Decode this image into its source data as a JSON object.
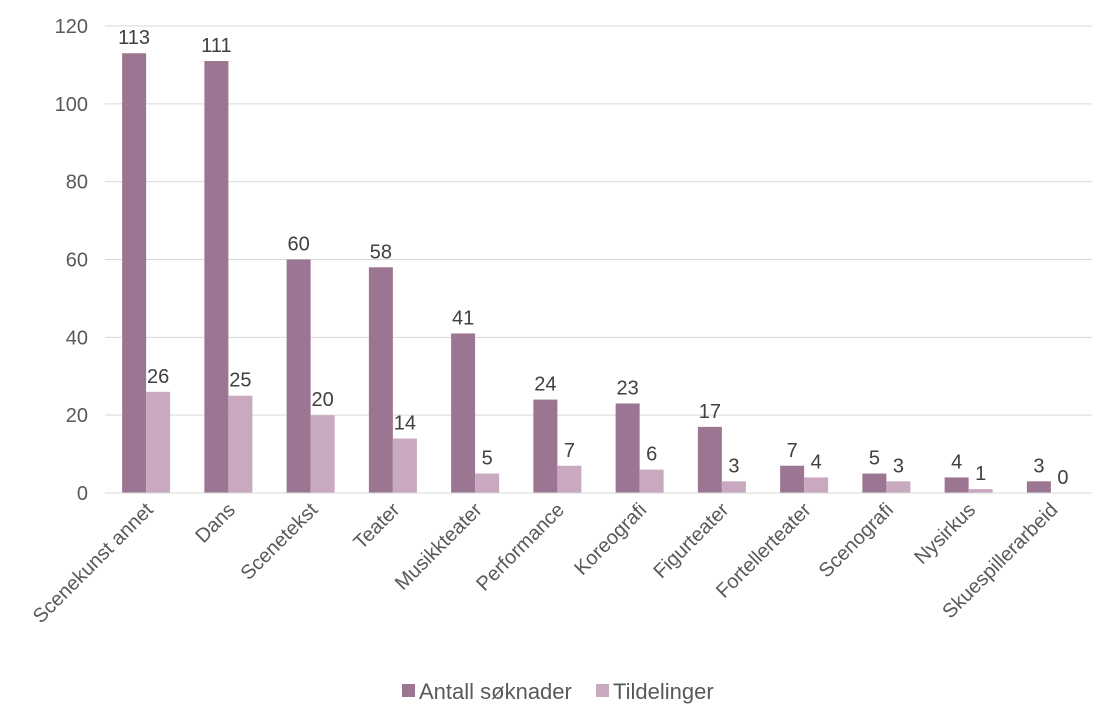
{
  "chart_data": {
    "type": "bar",
    "categories": [
      "Scenekunst annet",
      "Dans",
      "Scenetekst",
      "Teater",
      "Musikkteater",
      "Performance",
      "Koreografi",
      "Figurteater",
      "Fortellerteater",
      "Scenografi",
      "Nysirkus",
      "Skuespillerarbeid"
    ],
    "series": [
      {
        "name": "Antall søknader",
        "values": [
          113,
          111,
          60,
          58,
          41,
          24,
          23,
          17,
          7,
          5,
          4,
          3
        ],
        "color": "#9b7591"
      },
      {
        "name": "Tildelinger",
        "values": [
          26,
          25,
          20,
          14,
          5,
          7,
          6,
          3,
          4,
          3,
          1,
          0
        ],
        "color": "#c8a9bf"
      }
    ],
    "yticks": [
      0,
      20,
      40,
      60,
      80,
      100,
      120
    ],
    "ylim": [
      0,
      120
    ],
    "grid": true,
    "legend": "bottom-center",
    "data_labels": true
  }
}
